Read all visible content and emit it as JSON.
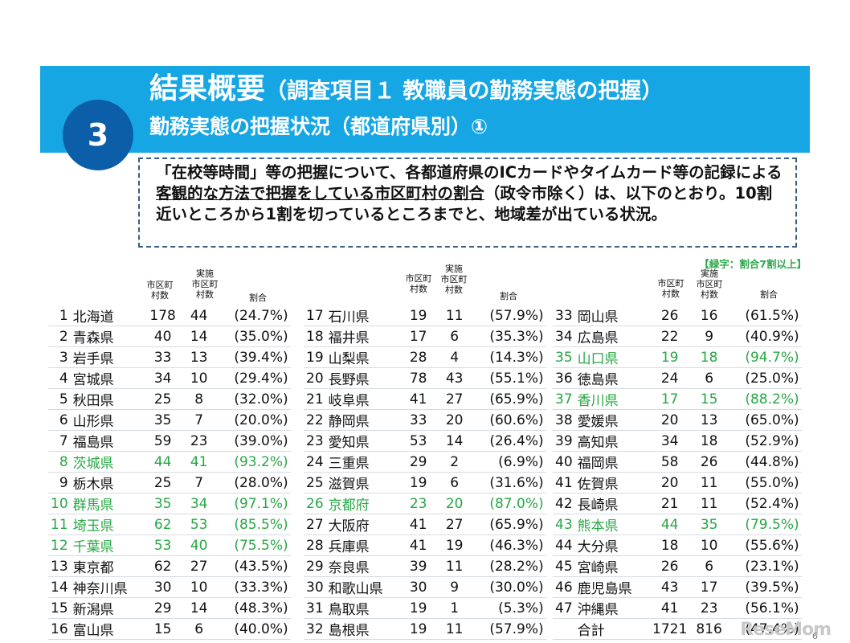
{
  "badge": "3",
  "title_main": "結果概要",
  "title_sub": "（調査項目１ 教職員の勤務実態の把握）",
  "subtitle": "勤務実態の把握状況（都道府県別）①",
  "summary_pre": "「在校等時間」等の把握について、各都道府県のICカードやタイムカード等の記録による",
  "summary_emph": "客観的な方法で把握をしている市区町村の割合",
  "summary_post": "（政令市除く）は、以下のとおり。10割近いところから1割を切っているところまでと、地域差が出ている状況。",
  "legend": "【緑字：割合7割以上】",
  "headers": {
    "municipalities": "市区町\n村数",
    "implemented": "実施\n市区町\n村数",
    "ratio": "割合"
  },
  "colors": {
    "header_bg": "#17a6e4",
    "badge_bg": "#0d5ea8",
    "highlight": "#27a744"
  },
  "tables": [
    [
      {
        "no": "1",
        "pref": "北海道",
        "total": "178",
        "impl": "44",
        "pct": "(24.7%)",
        "hl": false
      },
      {
        "no": "2",
        "pref": "青森県",
        "total": "40",
        "impl": "14",
        "pct": "(35.0%)",
        "hl": false
      },
      {
        "no": "3",
        "pref": "岩手県",
        "total": "33",
        "impl": "13",
        "pct": "(39.4%)",
        "hl": false
      },
      {
        "no": "4",
        "pref": "宮城県",
        "total": "34",
        "impl": "10",
        "pct": "(29.4%)",
        "hl": false
      },
      {
        "no": "5",
        "pref": "秋田県",
        "total": "25",
        "impl": "8",
        "pct": "(32.0%)",
        "hl": false
      },
      {
        "no": "6",
        "pref": "山形県",
        "total": "35",
        "impl": "7",
        "pct": "(20.0%)",
        "hl": false
      },
      {
        "no": "7",
        "pref": "福島県",
        "total": "59",
        "impl": "23",
        "pct": "(39.0%)",
        "hl": false
      },
      {
        "no": "8",
        "pref": "茨城県",
        "total": "44",
        "impl": "41",
        "pct": "(93.2%)",
        "hl": true
      },
      {
        "no": "9",
        "pref": "栃木県",
        "total": "25",
        "impl": "7",
        "pct": "(28.0%)",
        "hl": false
      },
      {
        "no": "10",
        "pref": "群馬県",
        "total": "35",
        "impl": "34",
        "pct": "(97.1%)",
        "hl": true
      },
      {
        "no": "11",
        "pref": "埼玉県",
        "total": "62",
        "impl": "53",
        "pct": "(85.5%)",
        "hl": true
      },
      {
        "no": "12",
        "pref": "千葉県",
        "total": "53",
        "impl": "40",
        "pct": "(75.5%)",
        "hl": true
      },
      {
        "no": "13",
        "pref": "東京都",
        "total": "62",
        "impl": "27",
        "pct": "(43.5%)",
        "hl": false
      },
      {
        "no": "14",
        "pref": "神奈川県",
        "total": "30",
        "impl": "10",
        "pct": "(33.3%)",
        "hl": false
      },
      {
        "no": "15",
        "pref": "新潟県",
        "total": "29",
        "impl": "14",
        "pct": "(48.3%)",
        "hl": false
      },
      {
        "no": "16",
        "pref": "富山県",
        "total": "15",
        "impl": "6",
        "pct": "(40.0%)",
        "hl": false
      }
    ],
    [
      {
        "no": "17",
        "pref": "石川県",
        "total": "19",
        "impl": "11",
        "pct": "(57.9%)",
        "hl": false
      },
      {
        "no": "18",
        "pref": "福井県",
        "total": "17",
        "impl": "6",
        "pct": "(35.3%)",
        "hl": false
      },
      {
        "no": "19",
        "pref": "山梨県",
        "total": "28",
        "impl": "4",
        "pct": "(14.3%)",
        "hl": false
      },
      {
        "no": "20",
        "pref": "長野県",
        "total": "78",
        "impl": "43",
        "pct": "(55.1%)",
        "hl": false
      },
      {
        "no": "21",
        "pref": "岐阜県",
        "total": "41",
        "impl": "27",
        "pct": "(65.9%)",
        "hl": false
      },
      {
        "no": "22",
        "pref": "静岡県",
        "total": "33",
        "impl": "20",
        "pct": "(60.6%)",
        "hl": false
      },
      {
        "no": "23",
        "pref": "愛知県",
        "total": "53",
        "impl": "14",
        "pct": "(26.4%)",
        "hl": false
      },
      {
        "no": "24",
        "pref": "三重県",
        "total": "29",
        "impl": "2",
        "pct": "(6.9%)",
        "hl": false
      },
      {
        "no": "25",
        "pref": "滋賀県",
        "total": "19",
        "impl": "6",
        "pct": "(31.6%)",
        "hl": false
      },
      {
        "no": "26",
        "pref": "京都府",
        "total": "23",
        "impl": "20",
        "pct": "(87.0%)",
        "hl": true
      },
      {
        "no": "27",
        "pref": "大阪府",
        "total": "41",
        "impl": "27",
        "pct": "(65.9%)",
        "hl": false
      },
      {
        "no": "28",
        "pref": "兵庫県",
        "total": "41",
        "impl": "19",
        "pct": "(46.3%)",
        "hl": false
      },
      {
        "no": "29",
        "pref": "奈良県",
        "total": "39",
        "impl": "11",
        "pct": "(28.2%)",
        "hl": false
      },
      {
        "no": "30",
        "pref": "和歌山県",
        "total": "30",
        "impl": "9",
        "pct": "(30.0%)",
        "hl": false
      },
      {
        "no": "31",
        "pref": "鳥取県",
        "total": "19",
        "impl": "1",
        "pct": "(5.3%)",
        "hl": false
      },
      {
        "no": "32",
        "pref": "島根県",
        "total": "19",
        "impl": "11",
        "pct": "(57.9%)",
        "hl": false
      }
    ],
    [
      {
        "no": "33",
        "pref": "岡山県",
        "total": "26",
        "impl": "16",
        "pct": "(61.5%)",
        "hl": false
      },
      {
        "no": "34",
        "pref": "広島県",
        "total": "22",
        "impl": "9",
        "pct": "(40.9%)",
        "hl": false
      },
      {
        "no": "35",
        "pref": "山口県",
        "total": "19",
        "impl": "18",
        "pct": "(94.7%)",
        "hl": true
      },
      {
        "no": "36",
        "pref": "徳島県",
        "total": "24",
        "impl": "6",
        "pct": "(25.0%)",
        "hl": false
      },
      {
        "no": "37",
        "pref": "香川県",
        "total": "17",
        "impl": "15",
        "pct": "(88.2%)",
        "hl": true
      },
      {
        "no": "38",
        "pref": "愛媛県",
        "total": "20",
        "impl": "13",
        "pct": "(65.0%)",
        "hl": false
      },
      {
        "no": "39",
        "pref": "高知県",
        "total": "34",
        "impl": "18",
        "pct": "(52.9%)",
        "hl": false
      },
      {
        "no": "40",
        "pref": "福岡県",
        "total": "58",
        "impl": "26",
        "pct": "(44.8%)",
        "hl": false
      },
      {
        "no": "41",
        "pref": "佐賀県",
        "total": "20",
        "impl": "11",
        "pct": "(55.0%)",
        "hl": false
      },
      {
        "no": "42",
        "pref": "長崎県",
        "total": "21",
        "impl": "11",
        "pct": "(52.4%)",
        "hl": false
      },
      {
        "no": "43",
        "pref": "熊本県",
        "total": "44",
        "impl": "35",
        "pct": "(79.5%)",
        "hl": true
      },
      {
        "no": "44",
        "pref": "大分県",
        "total": "18",
        "impl": "10",
        "pct": "(55.6%)",
        "hl": false
      },
      {
        "no": "45",
        "pref": "宮崎県",
        "total": "26",
        "impl": "6",
        "pct": "(23.1%)",
        "hl": false
      },
      {
        "no": "46",
        "pref": "鹿児島県",
        "total": "43",
        "impl": "17",
        "pct": "(39.5%)",
        "hl": false
      },
      {
        "no": "47",
        "pref": "沖縄県",
        "total": "41",
        "impl": "23",
        "pct": "(56.1%)",
        "hl": false
      },
      {
        "no": "",
        "pref": "合計",
        "total": "1721",
        "impl": "816",
        "pct": "(47.4%)",
        "hl": false
      }
    ]
  ],
  "page_number": "6",
  "watermark": "ReseMom"
}
